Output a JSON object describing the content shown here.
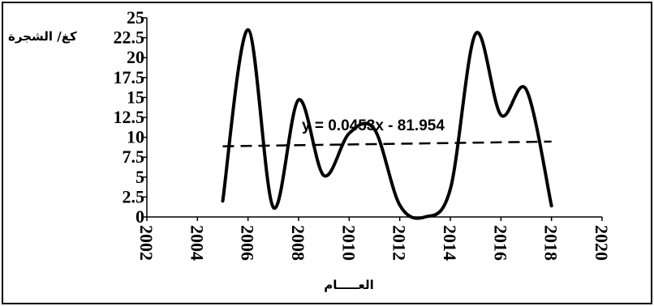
{
  "chart_data": {
    "type": "line",
    "title": "",
    "xlabel": "العـــــام",
    "ylabel": "كغ/ الشجرة",
    "xlim": [
      2002,
      2020
    ],
    "ylim": [
      0,
      25
    ],
    "x_ticks": [
      "2002",
      "2004",
      "2006",
      "2008",
      "2010",
      "2012",
      "2014",
      "2016",
      "2018",
      "2020"
    ],
    "y_ticks": [
      "0",
      "2.5",
      "5",
      "7.5",
      "10",
      "12.5",
      "15",
      "17.5",
      "20",
      "22.5",
      "25"
    ],
    "grid": false,
    "legend": "none",
    "series": [
      {
        "x": [
          2005,
          2006,
          2007,
          2008,
          2009,
          2010,
          2011,
          2012,
          2013,
          2014,
          2015,
          2016,
          2017,
          2018
        ],
        "values": [
          2,
          23.5,
          1.2,
          14.7,
          5.2,
          10.5,
          11,
          1.5,
          0,
          3.5,
          23,
          12.8,
          16,
          1.4
        ],
        "color": "#000000",
        "style": "solid"
      }
    ],
    "trendline": {
      "equation": "y = 0.0453x - 81.954",
      "slope": 0.0453,
      "intercept": -81.954,
      "x_range": [
        2005,
        2018
      ],
      "style": "dashed",
      "color": "#000000"
    }
  }
}
